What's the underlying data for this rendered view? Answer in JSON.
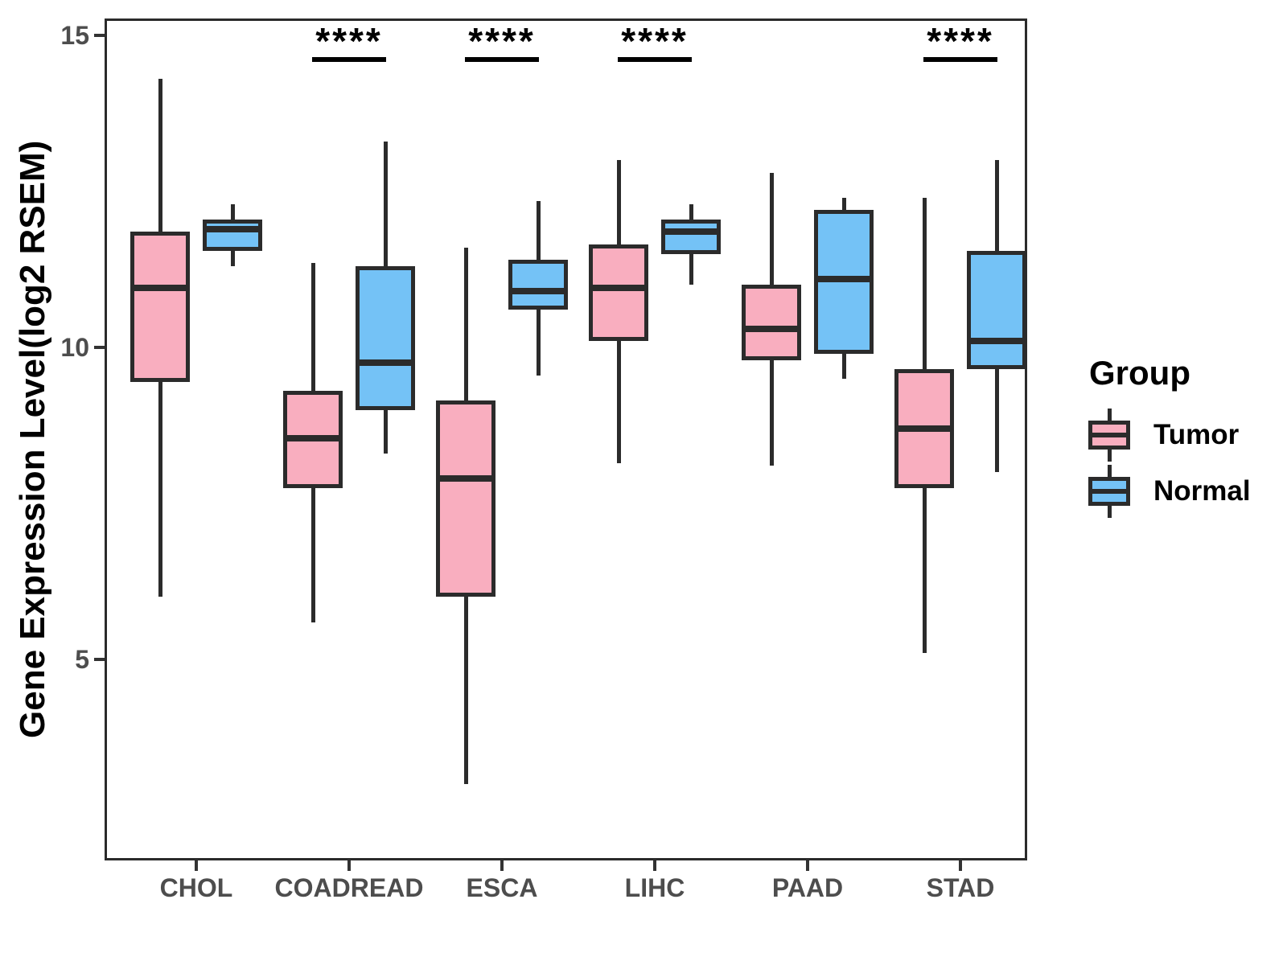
{
  "figure": {
    "background": "#ffffff"
  },
  "chart_data": {
    "type": "box",
    "title": "",
    "xlabel": "",
    "ylabel": "Gene Expression Level(log2 RSEM)",
    "categories": [
      "CHOL",
      "COADREAD",
      "ESCA",
      "LIHC",
      "PAAD",
      "STAD"
    ],
    "yticks": [
      5,
      10,
      15
    ],
    "ylim": [
      1.78,
      15.27
    ],
    "grid": false,
    "legend_position": "right",
    "series": [
      {
        "name": "Tumor",
        "color": "#F9AEBF",
        "boxes": [
          {
            "category": "CHOL",
            "min": 6.0,
            "q1": 9.45,
            "median": 10.95,
            "q3": 11.85,
            "max": 14.3
          },
          {
            "category": "COADREAD",
            "min": 5.6,
            "q1": 7.75,
            "median": 8.55,
            "q3": 9.3,
            "max": 11.35
          },
          {
            "category": "ESCA",
            "min": 3.0,
            "q1": 6.0,
            "median": 7.9,
            "q3": 9.15,
            "max": 11.6
          },
          {
            "category": "LIHC",
            "min": 8.15,
            "q1": 10.1,
            "median": 10.95,
            "q3": 11.65,
            "max": 13.0
          },
          {
            "category": "PAAD",
            "min": 8.1,
            "q1": 9.8,
            "median": 10.3,
            "q3": 11.0,
            "max": 12.8
          },
          {
            "category": "STAD",
            "min": 5.1,
            "q1": 7.75,
            "median": 8.7,
            "q3": 9.65,
            "max": 12.4
          }
        ]
      },
      {
        "name": "Normal",
        "color": "#74C2F6",
        "boxes": [
          {
            "category": "CHOL",
            "min": 11.3,
            "q1": 11.55,
            "median": 11.9,
            "q3": 12.05,
            "max": 12.3
          },
          {
            "category": "COADREAD",
            "min": 8.3,
            "q1": 9.0,
            "median": 9.75,
            "q3": 11.3,
            "max": 13.3
          },
          {
            "category": "ESCA",
            "min": 9.55,
            "q1": 10.6,
            "median": 10.9,
            "q3": 11.4,
            "max": 12.35
          },
          {
            "category": "LIHC",
            "min": 11.0,
            "q1": 11.5,
            "median": 11.85,
            "q3": 12.05,
            "max": 12.3
          },
          {
            "category": "PAAD",
            "min": 9.5,
            "q1": 9.9,
            "median": 11.1,
            "q3": 12.2,
            "max": 12.4
          },
          {
            "category": "STAD",
            "min": 8.0,
            "q1": 9.65,
            "median": 10.1,
            "q3": 11.55,
            "max": 13.0
          }
        ]
      }
    ],
    "significance": [
      {
        "category": "COADREAD",
        "label": "****"
      },
      {
        "category": "ESCA",
        "label": "****"
      },
      {
        "category": "LIHC",
        "label": "****"
      },
      {
        "category": "STAD",
        "label": "****"
      }
    ],
    "legend": {
      "title": "Group",
      "entries": [
        {
          "label": "Tumor",
          "color": "#F9AEBF"
        },
        {
          "label": "Normal",
          "color": "#74C2F6"
        }
      ]
    },
    "colors": {
      "tumor_fill": "#F9AEBF",
      "normal_fill": "#74C2F6",
      "line": "#2b2b2b",
      "tick_text": "#4d4d4d",
      "title_text": "#000000"
    }
  }
}
